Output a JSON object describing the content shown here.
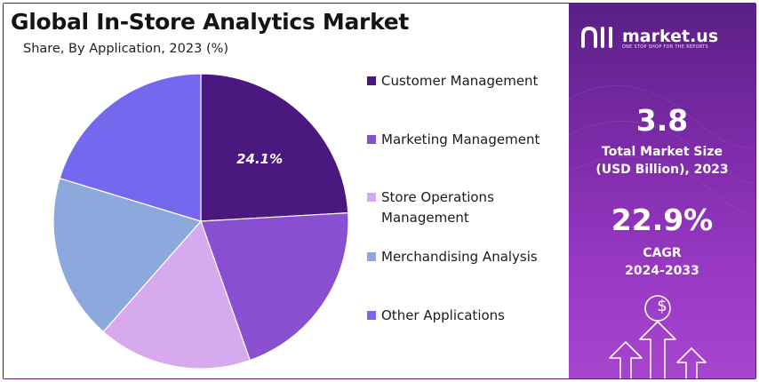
{
  "title": "Global In-Store Analytics Market",
  "subtitle": "Share, By Application, 2023 (%)",
  "chart_data": {
    "type": "pie",
    "categories": [
      "Customer Management",
      "Marketing Management",
      "Store Operations Management",
      "Merchandising Analysis",
      "Other Applications"
    ],
    "values": [
      24.1,
      20.5,
      16.9,
      18.2,
      20.3
    ],
    "colors": [
      "#4b1880",
      "#8a4fd1",
      "#d7a9ee",
      "#8ca9dd",
      "#7468ef"
    ],
    "labels": [
      "24.1%",
      "",
      "",
      "",
      ""
    ],
    "legend_position": "right"
  },
  "legend": {
    "items": [
      {
        "label": "Customer Management"
      },
      {
        "label": "Marketing Management"
      },
      {
        "label": "Store Operations Management"
      },
      {
        "label": "Merchandising Analysis"
      },
      {
        "label": "Other Applications"
      }
    ]
  },
  "panel": {
    "brand": "market.us",
    "tagline": "ONE STOP SHOP FOR THE REPORTS",
    "market_size_value": "3.8",
    "market_size_label_1": "Total Market Size",
    "market_size_label_2": "(USD Billion), 2023",
    "cagr_value": "22.9%",
    "cagr_label_1": "CAGR",
    "cagr_label_2": "2024-2033",
    "currency_symbol": "$",
    "colors": {
      "top": "#5a1f86",
      "bottom": "#a845cf"
    }
  }
}
